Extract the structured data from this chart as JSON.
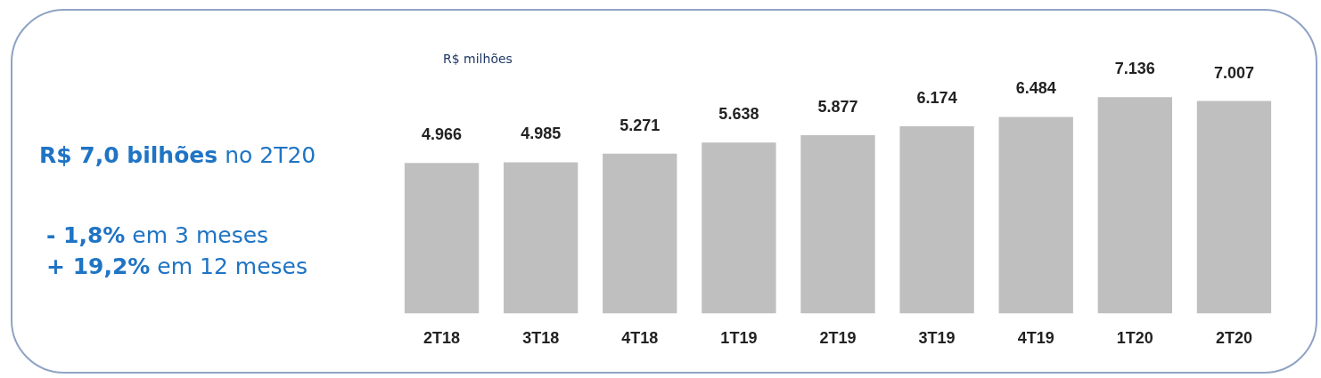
{
  "chart_data": {
    "type": "bar",
    "ylabel": "R$ milhões",
    "categories": [
      "2T18",
      "3T18",
      "4T18",
      "1T19",
      "2T19",
      "3T19",
      "4T19",
      "1T20",
      "2T20"
    ],
    "values": [
      4966,
      4985,
      5271,
      5638,
      5877,
      6174,
      6484,
      7136,
      7007
    ],
    "value_labels": [
      "4.966",
      "4.985",
      "5.271",
      "5.638",
      "5.877",
      "6.174",
      "6.484",
      "7.136",
      "7.007"
    ],
    "color": "#bfbfbf",
    "grid": false,
    "legend": false,
    "annotations": [
      "R$ 7,0 bilhões",
      "no 2T20",
      "- 1,8%",
      "em 3 meses",
      "+ 19,2%",
      "em 12 meses"
    ]
  }
}
